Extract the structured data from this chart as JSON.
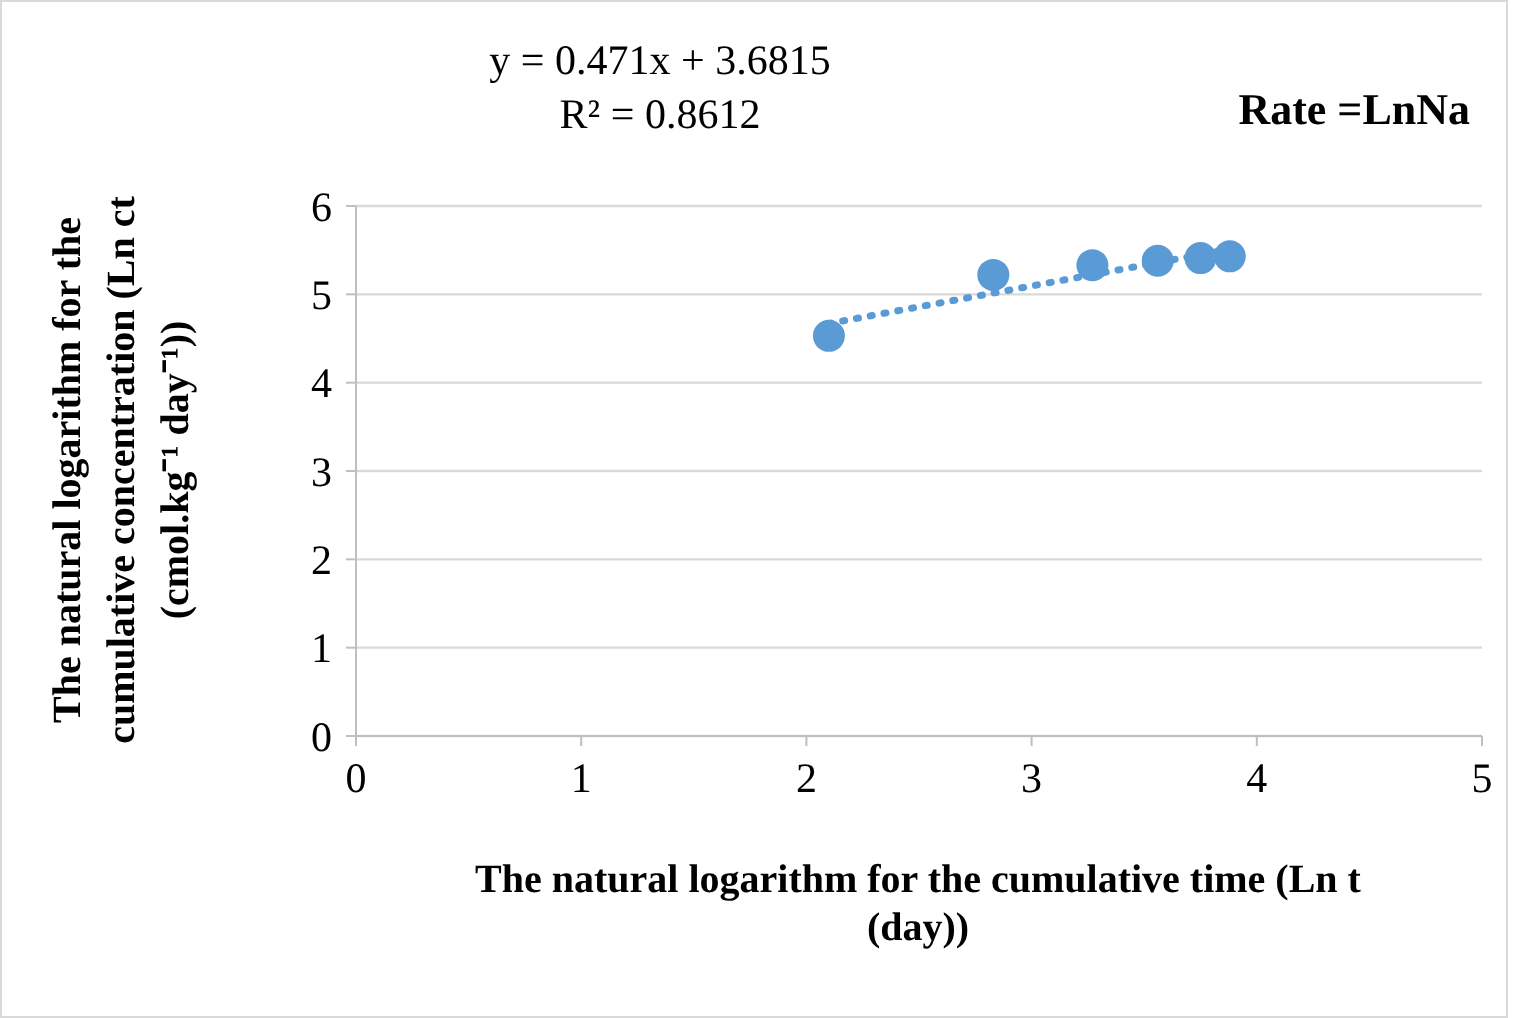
{
  "chart_data": {
    "type": "scatter",
    "title": "Rate =LnNa",
    "xlabel": "The natural logarithm for the cumulative time (Ln t (day))",
    "ylabel": "The natural logarithm for the cumulative concentration (Ln ct (cmol.kg⁻¹ day⁻¹))",
    "annotations": [
      "y = 0.471x + 3.6815",
      "R² = 0.8612"
    ],
    "series": [
      {
        "color": "#5b9bd5",
        "x": [
          2.1,
          2.83,
          3.27,
          3.56,
          3.75,
          3.88
        ],
        "values": [
          4.53,
          5.22,
          5.33,
          5.38,
          5.41,
          5.43
        ],
        "marker": "circle"
      },
      {
        "type": "line",
        "color": "#5b9bd5",
        "x": [
          2.1,
          3.88
        ],
        "values": [
          4.67,
          5.51
        ],
        "line_style": "dotted"
      }
    ],
    "xlim": [
      0,
      5
    ],
    "xticks": [
      0,
      1,
      2,
      3,
      4,
      5
    ],
    "ylim": [
      0,
      6
    ],
    "yticks": [
      0,
      1,
      2,
      3,
      4,
      5,
      6
    ],
    "grid": "y"
  }
}
